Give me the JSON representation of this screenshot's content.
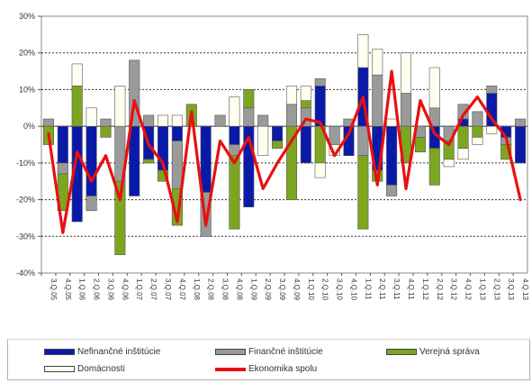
{
  "chart_data": {
    "type": "bar",
    "stacked": true,
    "y_tick_labels": [
      "30%",
      "20%",
      "10%",
      "0%",
      "-10%",
      "-20%",
      "-30%",
      "-40%"
    ],
    "ylim": [
      -40,
      30
    ],
    "grid": true,
    "x_tick_labels": [
      "3.Q.05",
      "4.Q.05",
      "1.Q.06",
      "2.Q.06",
      "3.Q.06",
      "4.Q.06",
      "1.Q.07",
      "2.Q.07",
      "3.Q.07",
      "4.Q.07",
      "1.Q.08",
      "2.Q.08",
      "3.Q.08",
      "4.Q.08",
      "1.Q.09",
      "2.Q.09",
      "3.Q.09",
      "4.Q.09",
      "1.Q.10",
      "2.Q.10",
      "3.Q.10",
      "4.Q.10",
      "1.Q.11",
      "2.Q.11",
      "3.Q.11",
      "4.Q.11",
      "1.Q.12",
      "2.Q.12",
      "3.Q.12",
      "4.Q.12",
      "1.Q.13",
      "2.Q.13",
      "3.Q.13",
      "4.Q.13"
    ],
    "series": [
      {
        "name": "Nefinančné inštitúcie",
        "color": "#0a1aa8",
        "values": [
          0,
          -10,
          -26,
          -19,
          0,
          0,
          -19,
          -9,
          -12,
          -4,
          0,
          -18,
          0,
          -5,
          -22,
          0,
          -4,
          0,
          -10,
          11,
          0,
          -8,
          16,
          -12,
          -16,
          0,
          0,
          -6,
          0,
          2,
          0,
          9,
          -3,
          -10
        ]
      },
      {
        "name": "Finančné inštitúcie",
        "color": "#9a9a9a",
        "values": [
          2,
          -3,
          0,
          -4,
          2,
          -15,
          18,
          3,
          0,
          -13,
          0,
          -12,
          3,
          -3,
          5,
          3,
          0,
          6,
          5,
          2,
          -5,
          2,
          -8,
          14,
          -3,
          9,
          -3,
          5,
          -4,
          4,
          4,
          2,
          -2,
          2
        ]
      },
      {
        "name": "Verejná správa",
        "color": "#7da620",
        "values": [
          -5,
          -10,
          11,
          0,
          -3,
          -20,
          0,
          -1,
          -3,
          -10,
          6,
          0,
          0,
          -20,
          5,
          0,
          -2,
          -20,
          2,
          -10,
          0,
          0,
          -20,
          -3,
          0,
          -10,
          -4,
          -10,
          -5,
          -6,
          -3,
          0,
          -4,
          0
        ]
      },
      {
        "name": "Domácnosti",
        "color": "#fffff0",
        "values": [
          0,
          0,
          6,
          5,
          0,
          11,
          0,
          0,
          3,
          3,
          0,
          0,
          0,
          8,
          0,
          -8,
          0,
          5,
          4,
          -4,
          -3,
          0,
          9,
          7,
          2,
          11,
          0,
          11,
          -2,
          -3,
          -2,
          -2,
          0,
          0
        ]
      }
    ],
    "line_series": {
      "name": "Ekonomika spolu",
      "color": "#e81010",
      "values": [
        -2,
        -29,
        -7,
        -15,
        -8,
        -20,
        7,
        -5,
        -10,
        -26,
        4,
        -27,
        -4,
        -10,
        -3,
        -17,
        -10,
        -4,
        2,
        1,
        -8,
        -2,
        8,
        -16,
        15,
        -17,
        7,
        -2,
        -5,
        3,
        8,
        2,
        -3,
        -20
      ]
    }
  },
  "legend": {
    "nefin": "Nefinančné inštitúcie",
    "fin": "Finančné inštitúcie",
    "verej": "Verejná správa",
    "domac": "Domácnosti",
    "ekon": "Ekonomika spolu"
  }
}
